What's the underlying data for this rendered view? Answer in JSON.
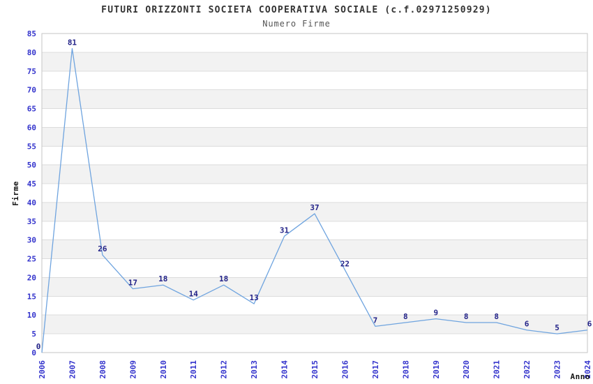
{
  "chart_data": {
    "type": "line",
    "title": "FUTURI ORIZZONTI SOCIETA COOPERATIVA SOCIALE (c.f.02971250929)",
    "subtitle": "Numero Firme",
    "xlabel": "Anno",
    "ylabel": "Firme",
    "categories": [
      "2006",
      "2007",
      "2008",
      "2009",
      "2010",
      "2011",
      "2012",
      "2013",
      "2014",
      "2015",
      "2016",
      "2017",
      "2018",
      "2019",
      "2020",
      "2021",
      "2022",
      "2023",
      "2024"
    ],
    "values": [
      0,
      81,
      26,
      17,
      18,
      14,
      18,
      13,
      31,
      37,
      22,
      7,
      8,
      9,
      8,
      8,
      6,
      5,
      6
    ],
    "ylim": [
      0,
      85
    ],
    "ytick_step": 5,
    "yticks": [
      0,
      5,
      10,
      15,
      20,
      25,
      30,
      35,
      40,
      45,
      50,
      55,
      60,
      65,
      70,
      75,
      80,
      85
    ],
    "grid": "horizontal-lines-with-alternating-bands",
    "legend": "none",
    "markers": "none",
    "data_labels_shown": true,
    "colors": {
      "line": "#6FA4DF",
      "tick_labels": "#3333CC",
      "data_labels": "#222288",
      "band_fill": "#F2F2F2",
      "grid_line": "#DCDCDC",
      "plot_border": "#C6C6C6",
      "title_text": "#333333",
      "subtitle_text": "#555555",
      "axis_title_text": "#111111"
    }
  }
}
